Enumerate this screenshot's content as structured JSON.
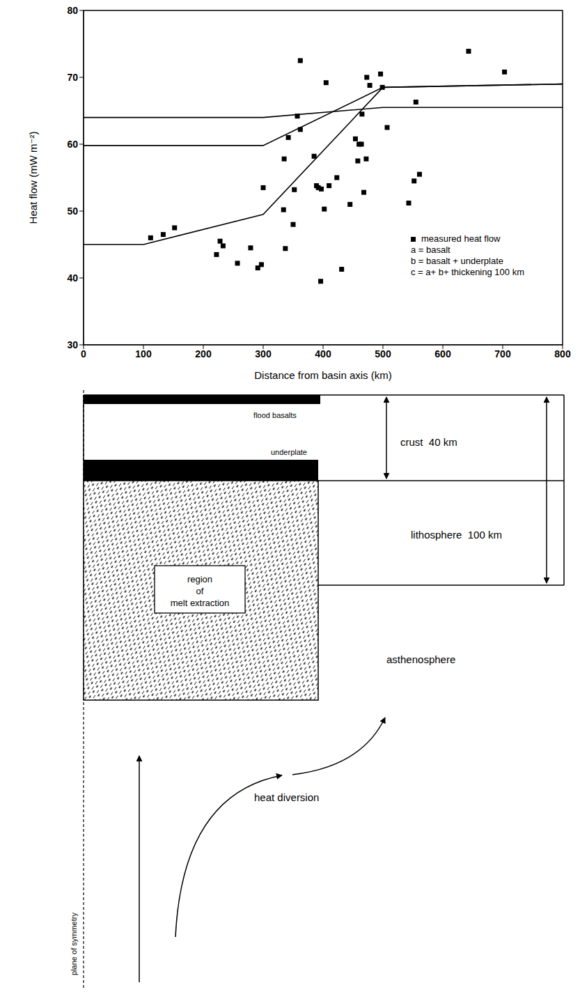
{
  "chart_data": {
    "type": "scatter",
    "x_label": "Distance from basin axis (km)",
    "y_label": "Heat flow (mW m⁻²)",
    "xlim": [
      0,
      800
    ],
    "xticks": [
      0,
      100,
      200,
      300,
      400,
      500,
      600,
      700,
      800
    ],
    "ylim": [
      30,
      80
    ],
    "yticks": [
      30,
      40,
      50,
      60,
      70,
      80
    ],
    "grid": false,
    "legend": "lower right",
    "series": [
      {
        "name": "measured heat flow",
        "type": "scatter",
        "marker": "square",
        "color": "#000000",
        "x": [
          112,
          133,
          152,
          222,
          228,
          233,
          257,
          279,
          291,
          297,
          300,
          334,
          335,
          337,
          342,
          350,
          352,
          357,
          362,
          362,
          385,
          389,
          392,
          396,
          397,
          402,
          405,
          410,
          423,
          431,
          445,
          454,
          458,
          460,
          464,
          465,
          468,
          472,
          473,
          478,
          496,
          499,
          507,
          543,
          552,
          555,
          561,
          643,
          703
        ],
        "values": [
          46,
          46.5,
          47.5,
          43.5,
          45.5,
          44.8,
          42.2,
          44.5,
          41.5,
          42,
          53.5,
          50.2,
          57.8,
          44.4,
          61,
          48,
          53.2,
          64.2,
          72.5,
          62.2,
          58.2,
          53.8,
          53.5,
          39.5,
          53.3,
          50.3,
          69.2,
          53.8,
          55,
          41.3,
          51,
          60.8,
          57.5,
          60,
          60,
          64.5,
          52.8,
          57.8,
          70,
          68.8,
          70.5,
          68.5,
          62.5,
          51.2,
          54.5,
          66.3,
          55.5,
          73.9,
          70.8
        ]
      },
      {
        "name": "a = basalt",
        "type": "line",
        "line_style": "solid",
        "color": "#000000",
        "x": [
          0,
          300,
          500,
          800
        ],
        "values": [
          64,
          64,
          65.5,
          65.5
        ]
      },
      {
        "name": "b = basalt + underplate",
        "type": "line",
        "line_style": "solid",
        "color": "#000000",
        "x": [
          0,
          300,
          500,
          800
        ],
        "values": [
          59.8,
          59.8,
          68.5,
          69
        ]
      },
      {
        "name": "c = a+ b+ thickening 100 km",
        "type": "line",
        "line_style": "solid",
        "color": "#000000",
        "x": [
          0,
          100,
          300,
          500,
          800
        ],
        "values": [
          45,
          45,
          49.5,
          68.5,
          69
        ]
      }
    ]
  },
  "diagram": {
    "plane": "plane of symmetry",
    "flood_basalts": "flood basalts",
    "underplate": "underplate",
    "crust": "crust  40 km",
    "lithosphere": "lithosphere  100 km",
    "melt_region": [
      "region",
      "of",
      "melt extraction"
    ],
    "asthenosphere": "asthenosphere",
    "heat": "heat diversion"
  }
}
